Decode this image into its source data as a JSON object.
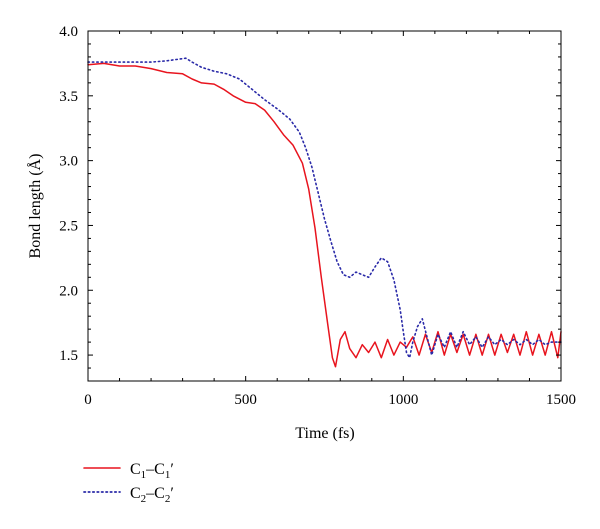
{
  "chart_data": {
    "type": "line",
    "title": "",
    "xlabel": "Time (fs)",
    "ylabel": "Bond length (Å)",
    "xlim": [
      0,
      1500
    ],
    "ylim": [
      1.3,
      4.0
    ],
    "x_ticks": [
      0,
      500,
      1000,
      1500
    ],
    "x_tick_labels": [
      "0",
      "500",
      "1000",
      "1500"
    ],
    "y_ticks": [
      1.5,
      2.0,
      2.5,
      3.0,
      3.5,
      4.0
    ],
    "y_tick_labels": [
      "1.5",
      "2.0",
      "2.5",
      "3.0",
      "3.5",
      "4.0"
    ],
    "grid": false,
    "legend_position": "bottom-left",
    "series": [
      {
        "name": "C1–C1′",
        "legend": {
          "main1": "C",
          "sub1": "1",
          "dash": "–",
          "main2": "C",
          "sub2": "1",
          "prime": "′"
        },
        "color": "#e8141e",
        "style": "solid",
        "x": [
          0,
          50,
          100,
          150,
          200,
          250,
          300,
          330,
          360,
          400,
          430,
          460,
          500,
          530,
          560,
          590,
          620,
          650,
          680,
          700,
          720,
          740,
          760,
          775,
          785,
          800,
          815,
          830,
          850,
          870,
          890,
          910,
          930,
          950,
          970,
          990,
          1010,
          1030,
          1050,
          1070,
          1090,
          1110,
          1130,
          1150,
          1170,
          1190,
          1210,
          1230,
          1250,
          1270,
          1290,
          1310,
          1330,
          1350,
          1370,
          1390,
          1410,
          1430,
          1450,
          1470,
          1490,
          1500
        ],
        "y": [
          3.74,
          3.75,
          3.73,
          3.73,
          3.71,
          3.68,
          3.67,
          3.63,
          3.6,
          3.59,
          3.55,
          3.5,
          3.45,
          3.44,
          3.39,
          3.3,
          3.2,
          3.12,
          2.98,
          2.78,
          2.48,
          2.1,
          1.74,
          1.48,
          1.41,
          1.62,
          1.68,
          1.55,
          1.48,
          1.58,
          1.52,
          1.6,
          1.48,
          1.62,
          1.5,
          1.6,
          1.56,
          1.64,
          1.5,
          1.66,
          1.52,
          1.68,
          1.5,
          1.66,
          1.52,
          1.66,
          1.5,
          1.66,
          1.5,
          1.66,
          1.5,
          1.66,
          1.52,
          1.66,
          1.5,
          1.68,
          1.5,
          1.66,
          1.5,
          1.68,
          1.48,
          1.68
        ]
      },
      {
        "name": "C2–C2′",
        "legend": {
          "main1": "C",
          "sub1": "2",
          "dash": "–",
          "main2": "C",
          "sub2": "2",
          "prime": "′"
        },
        "color": "#2a2aa8",
        "style": "dotted",
        "x": [
          0,
          50,
          100,
          150,
          200,
          250,
          280,
          310,
          330,
          360,
          400,
          440,
          480,
          520,
          560,
          600,
          640,
          670,
          690,
          710,
          730,
          750,
          770,
          790,
          810,
          830,
          850,
          870,
          890,
          910,
          930,
          950,
          970,
          990,
          1000,
          1010,
          1020,
          1030,
          1045,
          1060,
          1075,
          1090,
          1110,
          1130,
          1150,
          1170,
          1190,
          1210,
          1230,
          1250,
          1270,
          1290,
          1310,
          1330,
          1350,
          1370,
          1390,
          1410,
          1430,
          1450,
          1470,
          1490,
          1500
        ],
        "y": [
          3.76,
          3.76,
          3.76,
          3.76,
          3.76,
          3.77,
          3.78,
          3.79,
          3.76,
          3.72,
          3.69,
          3.67,
          3.63,
          3.55,
          3.47,
          3.4,
          3.32,
          3.22,
          3.1,
          2.95,
          2.75,
          2.55,
          2.38,
          2.22,
          2.12,
          2.1,
          2.14,
          2.12,
          2.1,
          2.18,
          2.25,
          2.22,
          2.08,
          1.85,
          1.68,
          1.52,
          1.48,
          1.6,
          1.72,
          1.78,
          1.64,
          1.5,
          1.66,
          1.56,
          1.68,
          1.56,
          1.68,
          1.58,
          1.64,
          1.56,
          1.64,
          1.58,
          1.62,
          1.58,
          1.62,
          1.58,
          1.62,
          1.58,
          1.62,
          1.58,
          1.6,
          1.6,
          1.6
        ]
      }
    ]
  }
}
